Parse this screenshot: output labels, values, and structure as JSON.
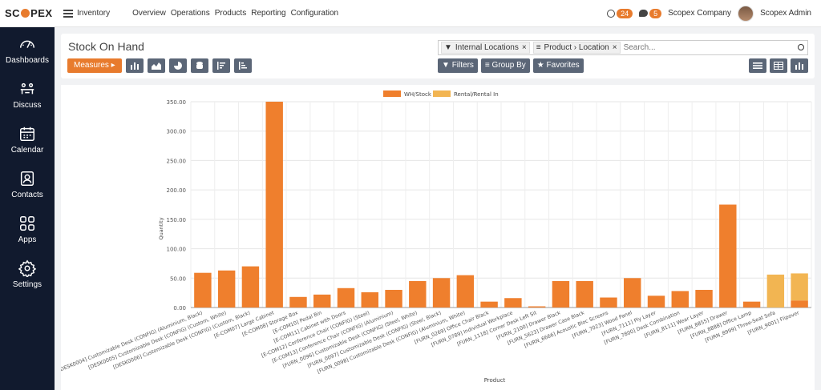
{
  "brand": {
    "logo_text_a": "SC",
    "logo_text_b": "PEX"
  },
  "topbar": {
    "app_name": "Inventory",
    "nav": [
      "Overview",
      "Operations",
      "Products",
      "Reporting",
      "Configuration"
    ],
    "activity_count": "24",
    "message_count": "5",
    "company": "Scopex Company",
    "user": "Scopex Admin"
  },
  "sidebar": {
    "items": [
      {
        "label": "Dashboards",
        "icon": "gauge-icon"
      },
      {
        "label": "Discuss",
        "icon": "discuss-icon"
      },
      {
        "label": "Calendar",
        "icon": "calendar-icon"
      },
      {
        "label": "Contacts",
        "icon": "contacts-icon"
      },
      {
        "label": "Apps",
        "icon": "apps-icon"
      },
      {
        "label": "Settings",
        "icon": "gear-icon"
      }
    ]
  },
  "control": {
    "title": "Stock On Hand",
    "measures_label": "Measures ▸",
    "facets": [
      "Internal Locations",
      "Product › Location"
    ],
    "search_placeholder": "Search...",
    "filters_label": "Filters",
    "groupby_label": "Group By",
    "favorites_label": "Favorites"
  },
  "colors": {
    "accent": "#e87b2d",
    "series1": "#ef7f2d",
    "series2": "#f2b552",
    "sidebar": "#111a2e"
  },
  "chart_data": {
    "type": "bar",
    "stacked": true,
    "xlabel": "Product",
    "ylabel": "Quantity",
    "ylim": [
      0,
      350
    ],
    "yticks": [
      0,
      50,
      100,
      150,
      200,
      250,
      300,
      350
    ],
    "ytick_labels": [
      "0.00",
      "50.00",
      "100.00",
      "150.00",
      "200.00",
      "250.00",
      "300.00",
      "350.00"
    ],
    "grid": true,
    "legend_position": "top-center",
    "categories": [
      "[DESK0004] Customizable Desk (CONFIG) (Aluminium, Black)",
      "[DESK0005] Customizable Desk (CONFIG) (Custom, White)",
      "[DESK0006] Customizable Desk (CONFIG) (Custom, Black)",
      "[E-COM07] Large Cabinet",
      "[E-COM08] Storage Box",
      "[E-COM10] Pedal Bin",
      "[E-COM11] Cabinet with Doors",
      "[E-COM12] Conference Chair (CONFIG) (Steel)",
      "[E-COM13] Conference Chair (CONFIG) (Aluminium)",
      "[FURN_0096] Customizable Desk (CONFIG) (Steel, White)",
      "[FURN_0097] Customizable Desk (CONFIG) (Steel, Black)",
      "[FURN_0098] Customizable Desk (CONFIG) (Aluminium, White)",
      "[FURN_0269] Office Chair Black",
      "[FURN_0789] Individual Workplace",
      "[FURN_1118] Corner Desk Left Sit",
      "[FURN_2100] Drawer Black",
      "[FURN_5623] Drawer Case Black",
      "[FURN_6666] Acoustic Bloc Screens",
      "[FURN_7023] Wood Panel",
      "[FURN_7111] Ply Layer",
      "[FURN_7800] Desk Combination",
      "[FURN_8111] Wear Layer",
      "[FURN_8855] Drawer",
      "[FURN_8888] Office Lamp",
      "[FURN_8999] Three-Seat Sofa",
      "[FURN_9001] Flipover"
    ],
    "series": [
      {
        "name": "WH/Stock",
        "values": [
          59,
          63,
          70,
          350,
          18,
          22,
          33,
          26,
          30,
          45,
          50,
          55,
          10,
          16,
          2,
          45,
          45,
          17,
          50,
          20,
          28,
          30,
          175,
          10,
          0,
          12
        ]
      },
      {
        "name": "Rental/Rental In",
        "values": [
          0,
          0,
          0,
          0,
          0,
          0,
          0,
          0,
          0,
          0,
          0,
          0,
          0,
          0,
          0,
          0,
          0,
          0,
          0,
          0,
          0,
          0,
          0,
          0,
          56,
          46
        ]
      }
    ]
  }
}
